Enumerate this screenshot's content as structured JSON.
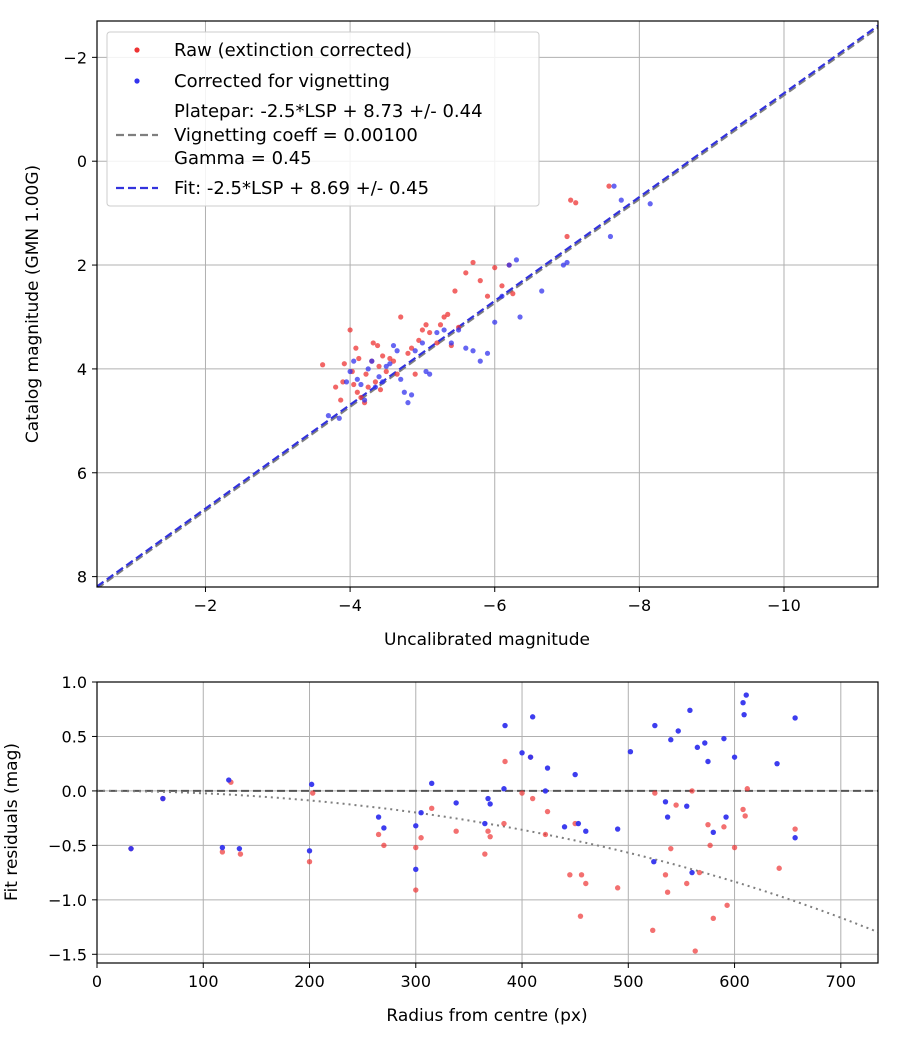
{
  "chart_data": [
    {
      "type": "scatter",
      "xlabel": "Uncalibrated magnitude",
      "ylabel": "Catalog magnitude (GMN 1.00G)",
      "xlim": [
        -0.5,
        -11.3
      ],
      "ylim": [
        8.2,
        -2.7
      ],
      "xticks": [
        -2,
        -4,
        -6,
        -8,
        -10
      ],
      "yticks": [
        -2,
        0,
        2,
        4,
        6,
        8
      ],
      "xtick_labels": [
        "−2",
        "−4",
        "−6",
        "−8",
        "−10"
      ],
      "ytick_labels": [
        "−2",
        "0",
        "2",
        "4",
        "6",
        "8"
      ],
      "grid": true,
      "legend_position": "top-left",
      "legend": {
        "raw_label": "Raw (extinction corrected)",
        "corrected_label": "Corrected for vignetting",
        "platepar_line1": "Platepar: -2.5*LSP + 8.73 +/- 0.44",
        "platepar_line2": "Vignetting coeff = 0.00100",
        "platepar_line3": "Gamma = 0.45",
        "fit_label": "Fit: -2.5*LSP + 8.69 +/- 0.45"
      },
      "colors": {
        "raw": "#ee3333",
        "corrected": "#3333ee",
        "platepar": "#7f7f7f",
        "fit": "#3333dd"
      },
      "platepar_line": {
        "slope": -2.5,
        "intercept": 8.73,
        "gamma": 0.45
      },
      "fit_line": {
        "slope": -2.5,
        "intercept": 8.69,
        "gamma": 0.45
      },
      "series": [
        {
          "name": "Raw (extinction corrected)",
          "x": [
            -3.62,
            -3.8,
            -3.87,
            -3.9,
            -3.92,
            -4.0,
            -4.03,
            -4.05,
            -4.08,
            -4.1,
            -4.12,
            -4.15,
            -4.2,
            -4.22,
            -4.25,
            -4.3,
            -4.32,
            -4.35,
            -4.38,
            -4.4,
            -4.42,
            -4.45,
            -4.5,
            -4.55,
            -4.6,
            -4.65,
            -4.7,
            -4.8,
            -4.85,
            -4.9,
            -4.95,
            -5.0,
            -5.05,
            -5.1,
            -5.2,
            -5.25,
            -5.3,
            -5.35,
            -5.4,
            -5.45,
            -5.5,
            -5.6,
            -5.7,
            -5.8,
            -5.9,
            -6.0,
            -6.1,
            -6.2,
            -6.25,
            -7.0,
            -7.05,
            -7.12,
            -7.58
          ],
          "y": [
            3.92,
            4.35,
            4.6,
            4.25,
            3.9,
            3.25,
            4.05,
            4.3,
            3.6,
            4.45,
            3.8,
            4.55,
            4.65,
            4.1,
            4.35,
            3.85,
            3.5,
            4.25,
            3.55,
            3.95,
            4.4,
            3.75,
            4.05,
            3.8,
            3.85,
            4.1,
            3.0,
            3.7,
            3.6,
            4.1,
            3.45,
            3.25,
            3.15,
            3.3,
            3.5,
            3.15,
            3.0,
            2.95,
            3.55,
            2.5,
            3.2,
            2.15,
            1.95,
            2.3,
            2.6,
            2.05,
            2.4,
            2.0,
            2.55,
            1.45,
            0.75,
            0.8,
            0.48
          ]
        },
        {
          "name": "Corrected for vignetting",
          "x": [
            -3.7,
            -3.85,
            -3.95,
            -4.0,
            -4.05,
            -4.1,
            -4.15,
            -4.2,
            -4.25,
            -4.3,
            -4.35,
            -4.4,
            -4.45,
            -4.5,
            -4.55,
            -4.6,
            -4.65,
            -4.7,
            -4.75,
            -4.8,
            -4.85,
            -4.9,
            -5.0,
            -5.05,
            -5.1,
            -5.2,
            -5.3,
            -5.4,
            -5.5,
            -5.6,
            -5.7,
            -5.8,
            -5.9,
            -6.0,
            -6.1,
            -6.2,
            -6.3,
            -6.35,
            -6.65,
            -6.95,
            -7.0,
            -7.6,
            -7.65,
            -7.75,
            -8.15
          ],
          "y": [
            4.9,
            4.95,
            4.25,
            4.05,
            3.85,
            4.2,
            4.3,
            4.6,
            4.0,
            3.85,
            4.35,
            4.15,
            4.25,
            3.95,
            3.9,
            3.55,
            3.65,
            4.2,
            4.45,
            4.65,
            4.5,
            3.65,
            3.5,
            4.05,
            4.1,
            3.3,
            3.25,
            3.5,
            3.25,
            3.6,
            3.65,
            3.85,
            3.7,
            3.1,
            2.6,
            2.0,
            1.9,
            3.0,
            2.5,
            2.0,
            1.95,
            1.45,
            0.48,
            0.75,
            0.82
          ]
        }
      ]
    },
    {
      "type": "scatter",
      "xlabel": "Radius from centre (px)",
      "ylabel": "Fit residuals (mag)",
      "xlim": [
        0,
        735
      ],
      "ylim": [
        -1.58,
        1.0
      ],
      "xticks": [
        0,
        100,
        200,
        300,
        400,
        500,
        600,
        700
      ],
      "yticks": [
        1.0,
        0.5,
        0.0,
        -0.5,
        -1.0,
        -1.5
      ],
      "xtick_labels": [
        "0",
        "100",
        "200",
        "300",
        "400",
        "500",
        "600",
        "700"
      ],
      "ytick_labels": [
        "1.0",
        "0.5",
        "0.0",
        "−0.5",
        "−1.0",
        "−1.5"
      ],
      "grid": true,
      "zero_line": 0.0,
      "vignetting_curve": {
        "coeff": 0.001,
        "model": "-2.5*log10(cos^4(coeff*r))"
      },
      "series": [
        {
          "name": "Raw (extinction corrected)",
          "x": [
            32,
            62,
            118,
            126,
            135,
            200,
            203,
            265,
            270,
            300,
            300,
            305,
            315,
            338,
            365,
            368,
            370,
            383,
            384,
            400,
            408,
            410,
            422,
            424,
            445,
            450,
            455,
            456,
            460,
            490,
            523,
            525,
            535,
            537,
            540,
            545,
            555,
            560,
            563,
            567,
            575,
            577,
            580,
            590,
            593,
            600,
            608,
            610,
            612,
            642,
            657
          ],
          "y": [
            -0.53,
            -0.07,
            -0.56,
            0.08,
            -0.58,
            -0.65,
            -0.02,
            -0.4,
            -0.5,
            -0.52,
            -0.91,
            -0.43,
            -0.16,
            -0.37,
            -0.58,
            -0.37,
            -0.42,
            -0.3,
            0.27,
            -0.02,
            0.31,
            -0.07,
            -0.4,
            -0.19,
            -0.77,
            -0.3,
            -1.15,
            -0.77,
            -0.85,
            -0.89,
            -1.28,
            -0.02,
            -0.77,
            -0.93,
            -0.53,
            -0.13,
            -0.85,
            0.0,
            -1.47,
            -0.75,
            -0.31,
            -0.5,
            -1.17,
            -0.33,
            -1.05,
            -0.52,
            -0.17,
            -0.23,
            0.02,
            -0.71,
            -0.35
          ]
        },
        {
          "name": "Corrected for vignetting",
          "x": [
            32,
            62,
            118,
            124,
            134,
            200,
            202,
            265,
            270,
            300,
            300,
            305,
            315,
            338,
            365,
            368,
            370,
            383,
            384,
            400,
            408,
            410,
            422,
            424,
            440,
            450,
            453,
            460,
            490,
            502,
            524,
            525,
            535,
            537,
            540,
            547,
            555,
            558,
            560,
            565,
            572,
            575,
            580,
            590,
            592,
            600,
            608,
            609,
            611,
            640,
            657,
            657
          ],
          "y": [
            -0.53,
            -0.07,
            -0.52,
            0.1,
            -0.53,
            -0.55,
            0.06,
            -0.24,
            -0.34,
            -0.32,
            -0.72,
            -0.2,
            0.07,
            -0.11,
            -0.3,
            -0.07,
            -0.12,
            0.02,
            0.6,
            0.35,
            0.31,
            0.68,
            0.0,
            0.21,
            -0.33,
            0.15,
            -0.3,
            -0.37,
            -0.35,
            0.36,
            -0.65,
            0.6,
            -0.1,
            -0.24,
            0.47,
            0.55,
            -0.14,
            0.74,
            -0.75,
            0.4,
            0.44,
            0.27,
            -0.38,
            0.48,
            -0.24,
            0.31,
            0.81,
            0.7,
            0.88,
            0.25,
            0.67,
            -0.43
          ]
        }
      ]
    }
  ]
}
